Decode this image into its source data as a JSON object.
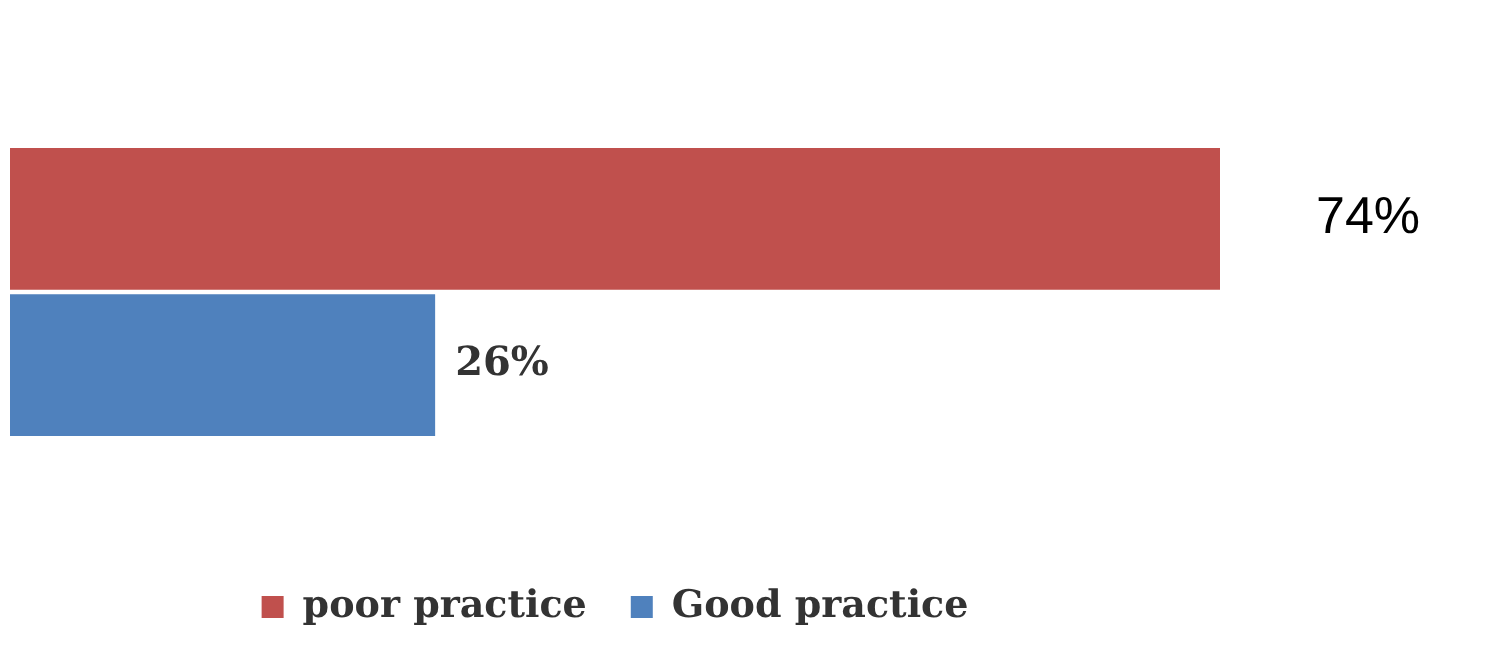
{
  "chart_data": {
    "type": "bar",
    "orientation": "horizontal",
    "categories": [
      null
    ],
    "legend": "bottom",
    "series": [
      {
        "name": "poor practice",
        "color": "#c0504d",
        "values": [
          74
        ],
        "value_labels": [
          "74%"
        ]
      },
      {
        "name": "Good practice",
        "color": "#4f81bd",
        "values": [
          26
        ],
        "value_labels": [
          "26%"
        ]
      }
    ]
  }
}
